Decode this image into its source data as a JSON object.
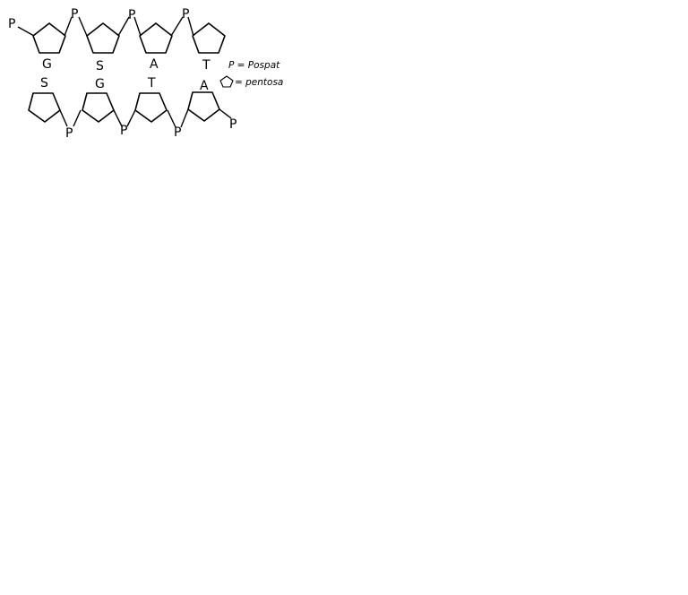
{
  "diagram": {
    "top_strand": {
      "phosphates": [
        "P",
        "P",
        "P",
        "P"
      ],
      "bases": [
        "G",
        "S",
        "A",
        "T"
      ]
    },
    "bottom_strand": {
      "phosphates": [
        "P",
        "P",
        "P",
        "P"
      ],
      "bases": [
        "S",
        "G",
        "T",
        "A"
      ]
    },
    "legend": {
      "phosphate": "P = Pospat",
      "pentose": "= pentosa"
    },
    "colors": {
      "ink": "#000000",
      "background": "#ffffff"
    }
  }
}
